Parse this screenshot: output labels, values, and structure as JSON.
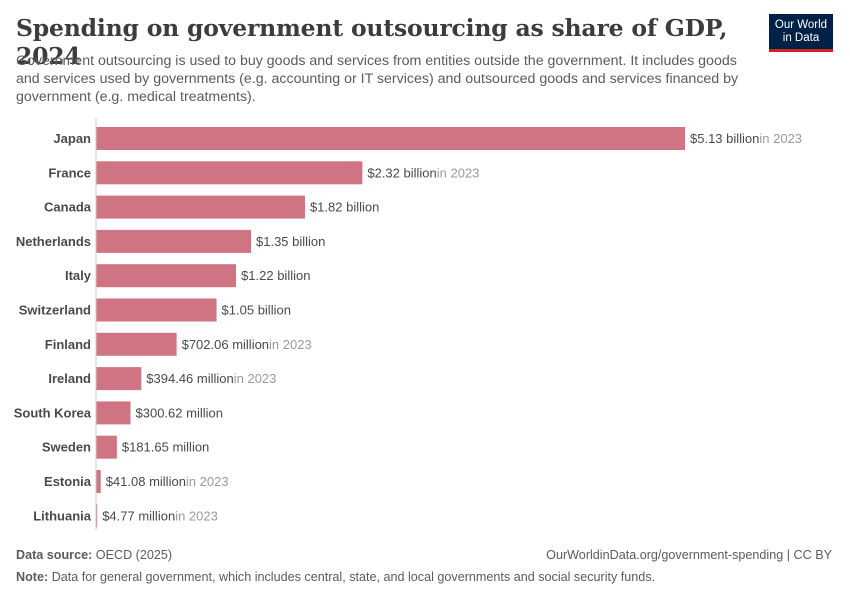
{
  "header": {
    "title": "Spending on government outsourcing as share of GDP, 2024",
    "subtitle": "Government outsourcing is used to buy goods and services from entities outside the government. It includes goods and services used by governments (e.g. accounting or IT services) and outsourced goods and services financed by government (e.g. medical treatments)."
  },
  "logo": {
    "line1": "Our World",
    "line2": "in Data",
    "bg_color": "#002147",
    "accent_color": "#ce261e"
  },
  "chart_data": {
    "type": "bar",
    "orientation": "horizontal",
    "categories": [
      "Japan",
      "France",
      "Canada",
      "Netherlands",
      "Italy",
      "Switzerland",
      "Finland",
      "Ireland",
      "South Korea",
      "Sweden",
      "Estonia",
      "Lithuania"
    ],
    "values": [
      5130000000,
      2320000000,
      1820000000,
      1350000000,
      1220000000,
      1050000000,
      702060000,
      394460000,
      300620000,
      181650000,
      41080000,
      4770000
    ],
    "value_labels": [
      "$5.13 billion",
      "$2.32 billion",
      "$1.82 billion",
      "$1.35 billion",
      "$1.22 billion",
      "$1.05 billion",
      "$702.06 million",
      "$394.46 million",
      "$300.62 million",
      "$181.65 million",
      "$41.08 million",
      "$4.77 million"
    ],
    "year_notes": [
      "in 2023",
      "in 2023",
      "",
      "",
      "",
      "",
      "in 2023",
      "in 2023",
      "",
      "",
      "in 2023",
      "in 2023"
    ],
    "bar_color": "#cf7482",
    "grid": false
  },
  "footer": {
    "source_label": "Data source:",
    "source_value": "OECD (2025)",
    "url": "OurWorldinData.org/government-spending | CC BY",
    "note_label": "Note:",
    "note_value": "Data for general government, which includes central, state, and local governments and social security funds."
  }
}
